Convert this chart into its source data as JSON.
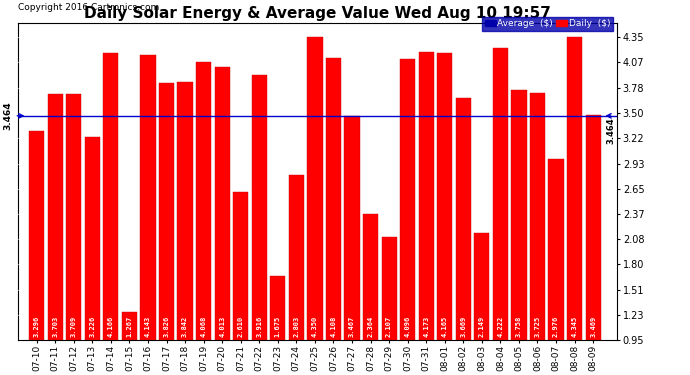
{
  "title": "Daily Solar Energy & Average Value Wed Aug 10 19:57",
  "copyright": "Copyright 2016 Cartronics.com",
  "categories": [
    "07-10",
    "07-11",
    "07-12",
    "07-13",
    "07-14",
    "07-15",
    "07-16",
    "07-17",
    "07-18",
    "07-19",
    "07-20",
    "07-21",
    "07-22",
    "07-23",
    "07-24",
    "07-25",
    "07-26",
    "07-27",
    "07-28",
    "07-29",
    "07-30",
    "07-31",
    "08-01",
    "08-02",
    "08-03",
    "08-04",
    "08-05",
    "08-06",
    "08-07",
    "08-08",
    "08-09"
  ],
  "values": [
    3.296,
    3.703,
    3.709,
    3.226,
    4.166,
    1.267,
    4.143,
    3.826,
    3.842,
    4.068,
    4.013,
    2.61,
    3.916,
    1.675,
    2.803,
    4.35,
    4.108,
    3.467,
    2.364,
    2.107,
    4.096,
    4.173,
    4.165,
    3.669,
    2.149,
    4.222,
    3.758,
    3.725,
    2.976,
    4.345,
    3.469
  ],
  "average": 3.464,
  "average_label": "3.464",
  "last_label": "3.464",
  "bar_color": "#FF0000",
  "average_line_color": "#0000CC",
  "ylim_min": 0.95,
  "ylim_max": 4.5,
  "bar_bottom": 0.95,
  "yticks": [
    0.95,
    1.23,
    1.51,
    1.8,
    2.08,
    2.37,
    2.65,
    2.93,
    3.22,
    3.5,
    3.78,
    4.07,
    4.35
  ],
  "title_fontsize": 11,
  "copyright_fontsize": 6.5,
  "bar_label_fontsize": 5.0,
  "tick_fontsize": 7.0,
  "xtick_fontsize": 6.5,
  "legend_average_color": "#0000AA",
  "legend_daily_color": "#FF0000",
  "bg_color": "#FFFFFF",
  "plot_bg_color": "#FFFFFF"
}
